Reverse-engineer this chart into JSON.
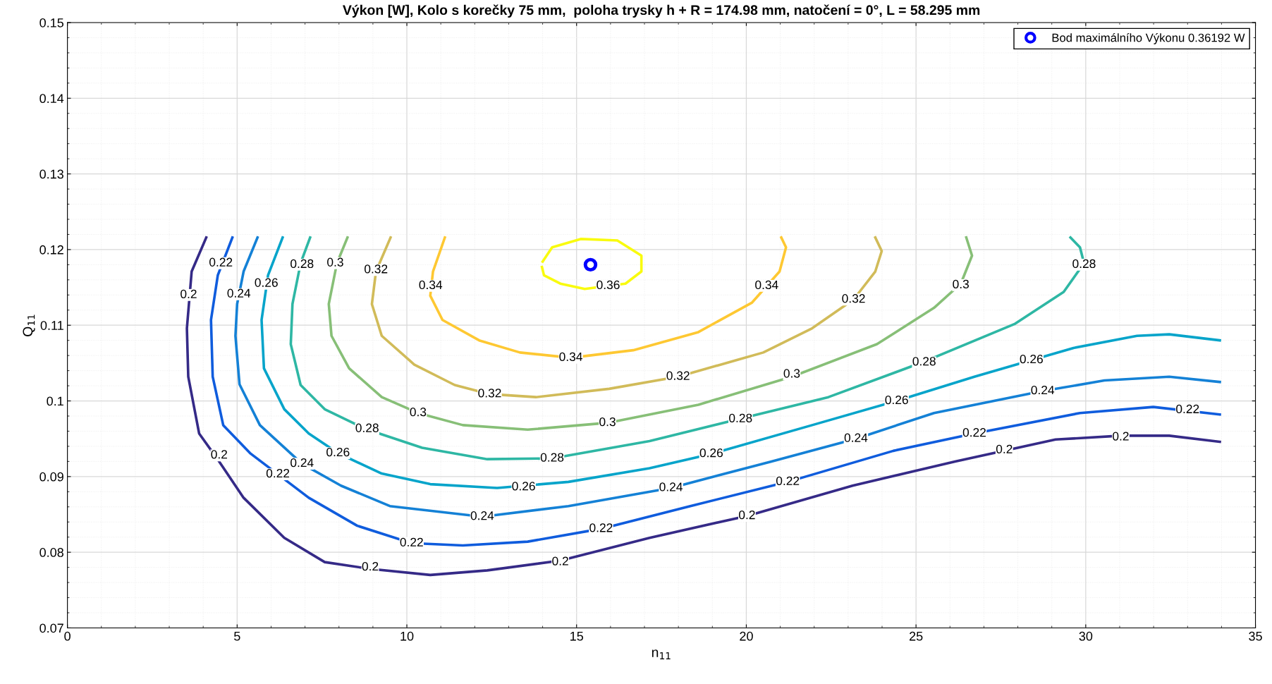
{
  "chart_data": {
    "type": "line",
    "title": "Výkon [W], Kolo s korečky 75 mm,  poloha trysky h + R = 174.98 mm, natočení = 0°, L = 58.295 mm",
    "xlabel": "n$_{11}$",
    "ylabel": "Q$_{11}$",
    "xlim": [
      0,
      35
    ],
    "xticks": [
      0,
      5,
      10,
      15,
      20,
      25,
      30,
      35
    ],
    "ylim": [
      0.07,
      0.15
    ],
    "yticks": [
      0.07,
      0.08,
      0.09,
      0.1,
      0.11,
      0.12,
      0.13,
      0.14,
      0.15
    ],
    "grid": true,
    "legend": "top right",
    "marker": "none",
    "line_style": "solid",
    "series": [
      {
        "color": "#352a87",
        "x": [
          4.09,
          3.66,
          3.52,
          3.56,
          3.88,
          4.47,
          5.19,
          6.39,
          7.58,
          8.92,
          10.69,
          12.37,
          14.52,
          17.15,
          20.02,
          23.13,
          26.15,
          29.11,
          31.03,
          32.46,
          33.95
        ],
        "values": [
          0.1216,
          0.1171,
          0.1096,
          0.1032,
          0.0957,
          0.092,
          0.0872,
          0.0819,
          0.0787,
          0.0778,
          0.077,
          0.0776,
          0.0789,
          0.0819,
          0.0848,
          0.0888,
          0.092,
          0.0949,
          0.0954,
          0.0954,
          0.0946
        ]
      },
      {
        "color": "#0f5cdd",
        "x": [
          4.86,
          4.43,
          4.23,
          4.28,
          4.59,
          5.38,
          7.11,
          8.54,
          10.14,
          11.65,
          13.56,
          15.72,
          18.35,
          21.22,
          24.33,
          26.72,
          29.83,
          31.99,
          33.95
        ],
        "values": [
          0.1216,
          0.1166,
          0.1107,
          0.1032,
          0.0968,
          0.0931,
          0.0872,
          0.0835,
          0.0812,
          0.0809,
          0.0814,
          0.0831,
          0.0861,
          0.0893,
          0.0934,
          0.0957,
          0.0984,
          0.0992,
          0.0982
        ]
      },
      {
        "color": "#1481d6",
        "x": [
          5.6,
          5.19,
          5.0,
          4.95,
          5.07,
          5.67,
          6.91,
          8.06,
          9.5,
          12.22,
          14.76,
          17.78,
          20.74,
          23.23,
          25.53,
          28.73,
          30.55,
          32.46,
          33.95
        ],
        "values": [
          0.1216,
          0.1171,
          0.1128,
          0.1086,
          0.1022,
          0.0968,
          0.0917,
          0.0888,
          0.0861,
          0.0847,
          0.0861,
          0.0885,
          0.092,
          0.095,
          0.0984,
          0.1013,
          0.1027,
          0.1032,
          0.1025
        ]
      },
      {
        "color": "#06a4ca",
        "x": [
          6.34,
          5.91,
          5.72,
          5.79,
          6.39,
          7.11,
          7.97,
          9.26,
          10.69,
          12.66,
          14.76,
          17.15,
          18.97,
          21.94,
          24.43,
          26.72,
          29.64,
          31.51,
          32.46,
          33.95
        ],
        "values": [
          0.1216,
          0.1166,
          0.1107,
          0.1043,
          0.0989,
          0.0957,
          0.0931,
          0.0904,
          0.089,
          0.0885,
          0.0893,
          0.0911,
          0.093,
          0.0968,
          0.1,
          0.1032,
          0.107,
          0.1086,
          0.1088,
          0.108
        ]
      },
      {
        "color": "#2eb7a4",
        "x": [
          7.15,
          6.87,
          6.63,
          6.58,
          6.87,
          7.58,
          8.78,
          10.45,
          12.37,
          14.28,
          17.15,
          19.78,
          22.42,
          25.19,
          27.92,
          29.35,
          29.95,
          29.83,
          29.55
        ],
        "values": [
          0.1216,
          0.1182,
          0.1128,
          0.1075,
          0.1021,
          0.0989,
          0.0963,
          0.0938,
          0.0923,
          0.0924,
          0.0947,
          0.0976,
          0.1005,
          0.1051,
          0.1102,
          0.1144,
          0.1182,
          0.1203,
          0.1216
        ]
      },
      {
        "color": "#87bf77",
        "x": [
          8.25,
          7.94,
          7.7,
          7.78,
          8.3,
          9.26,
          10.33,
          11.65,
          13.56,
          15.91,
          18.59,
          21.34,
          23.85,
          25.53,
          26.32,
          26.65,
          26.48
        ],
        "values": [
          0.1216,
          0.1182,
          0.1128,
          0.1086,
          0.1043,
          0.1005,
          0.0984,
          0.0968,
          0.0962,
          0.0971,
          0.0995,
          0.1032,
          0.1075,
          0.1123,
          0.1155,
          0.1192,
          0.1216
        ]
      },
      {
        "color": "#d1bb59",
        "x": [
          9.52,
          9.09,
          8.97,
          9.26,
          10.22,
          11.41,
          12.44,
          13.8,
          15.96,
          17.99,
          20.5,
          21.94,
          23.16,
          23.8,
          23.99,
          23.8
        ],
        "values": [
          0.1216,
          0.1171,
          0.1128,
          0.1086,
          0.1048,
          0.1021,
          0.1009,
          0.1005,
          0.1016,
          0.1032,
          0.1064,
          0.1096,
          0.1134,
          0.1171,
          0.1198,
          0.1216
        ]
      },
      {
        "color": "#fec832",
        "x": [
          11.12,
          10.77,
          10.69,
          11.05,
          12.13,
          13.33,
          14.83,
          16.67,
          18.59,
          20.17,
          20.98,
          21.17,
          21.03
        ],
        "values": [
          0.1216,
          0.1171,
          0.1139,
          0.1107,
          0.108,
          0.1064,
          0.1057,
          0.1067,
          0.1091,
          0.113,
          0.1171,
          0.1203,
          0.1216
        ]
      },
      {
        "color": "#f9fb0e",
        "x": [
          14.0,
          14.28,
          15.12,
          16.2,
          16.91,
          16.91,
          16.44,
          15.24,
          14.52,
          14.04,
          13.98
        ],
        "values": [
          0.1184,
          0.1203,
          0.1214,
          0.1212,
          0.1192,
          0.1171,
          0.1155,
          0.1148,
          0.1155,
          0.1166,
          0.1177
        ]
      },
      {
        "type": "scatter",
        "name": "Bod maximálního Výkonu 0.36192 W",
        "color": "#0000ff",
        "marker": "circle",
        "x": [
          15.41
        ],
        "values": [
          0.118
        ]
      }
    ],
    "annotations": [
      {
        "text": "0.2",
        "x": 3.57,
        "y": 0.114
      },
      {
        "text": "0.2",
        "x": 4.47,
        "y": 0.0928
      },
      {
        "text": "0.2",
        "x": 8.92,
        "y": 0.078
      },
      {
        "text": "0.2",
        "x": 14.52,
        "y": 0.0787
      },
      {
        "text": "0.2",
        "x": 20.02,
        "y": 0.0848
      },
      {
        "text": "0.2",
        "x": 27.6,
        "y": 0.0935
      },
      {
        "text": "0.2",
        "x": 31.03,
        "y": 0.0952
      },
      {
        "text": "0.22",
        "x": 4.52,
        "y": 0.1182
      },
      {
        "text": "0.22",
        "x": 6.2,
        "y": 0.0903
      },
      {
        "text": "0.22",
        "x": 10.14,
        "y": 0.0812
      },
      {
        "text": "0.22",
        "x": 15.72,
        "y": 0.0831
      },
      {
        "text": "0.22",
        "x": 21.22,
        "y": 0.0893
      },
      {
        "text": "0.22",
        "x": 26.72,
        "y": 0.0957
      },
      {
        "text": "0.22",
        "x": 33.0,
        "y": 0.0988
      },
      {
        "text": "0.24",
        "x": 5.05,
        "y": 0.1141
      },
      {
        "text": "0.24",
        "x": 6.91,
        "y": 0.0917
      },
      {
        "text": "0.24",
        "x": 12.22,
        "y": 0.0847
      },
      {
        "text": "0.24",
        "x": 17.78,
        "y": 0.0885
      },
      {
        "text": "0.24",
        "x": 23.23,
        "y": 0.095
      },
      {
        "text": "0.24",
        "x": 28.73,
        "y": 0.1013
      },
      {
        "text": "0.26",
        "x": 5.86,
        "y": 0.1155
      },
      {
        "text": "0.26",
        "x": 7.97,
        "y": 0.0931
      },
      {
        "text": "0.26",
        "x": 13.44,
        "y": 0.0886
      },
      {
        "text": "0.26",
        "x": 18.97,
        "y": 0.093
      },
      {
        "text": "0.26",
        "x": 24.43,
        "y": 0.1
      },
      {
        "text": "0.26",
        "x": 28.4,
        "y": 0.1054
      },
      {
        "text": "0.28",
        "x": 6.91,
        "y": 0.118
      },
      {
        "text": "0.28",
        "x": 8.83,
        "y": 0.0963
      },
      {
        "text": "0.28",
        "x": 14.28,
        "y": 0.0924
      },
      {
        "text": "0.28",
        "x": 19.83,
        "y": 0.0976
      },
      {
        "text": "0.28",
        "x": 25.24,
        "y": 0.1051
      },
      {
        "text": "0.28",
        "x": 29.95,
        "y": 0.118
      },
      {
        "text": "0.3",
        "x": 7.89,
        "y": 0.1182
      },
      {
        "text": "0.3",
        "x": 10.33,
        "y": 0.0984
      },
      {
        "text": "0.3",
        "x": 15.91,
        "y": 0.0971
      },
      {
        "text": "0.3",
        "x": 21.34,
        "y": 0.1035
      },
      {
        "text": "0.3",
        "x": 26.32,
        "y": 0.1153
      },
      {
        "text": "0.32",
        "x": 9.09,
        "y": 0.1173
      },
      {
        "text": "0.32",
        "x": 12.44,
        "y": 0.1009
      },
      {
        "text": "0.32",
        "x": 17.99,
        "y": 0.1032
      },
      {
        "text": "0.32",
        "x": 23.16,
        "y": 0.1134
      },
      {
        "text": "0.34",
        "x": 10.7,
        "y": 0.1152
      },
      {
        "text": "0.34",
        "x": 14.83,
        "y": 0.1057
      },
      {
        "text": "0.34",
        "x": 20.6,
        "y": 0.1152
      },
      {
        "text": "0.36",
        "x": 15.93,
        "y": 0.1152
      }
    ]
  }
}
